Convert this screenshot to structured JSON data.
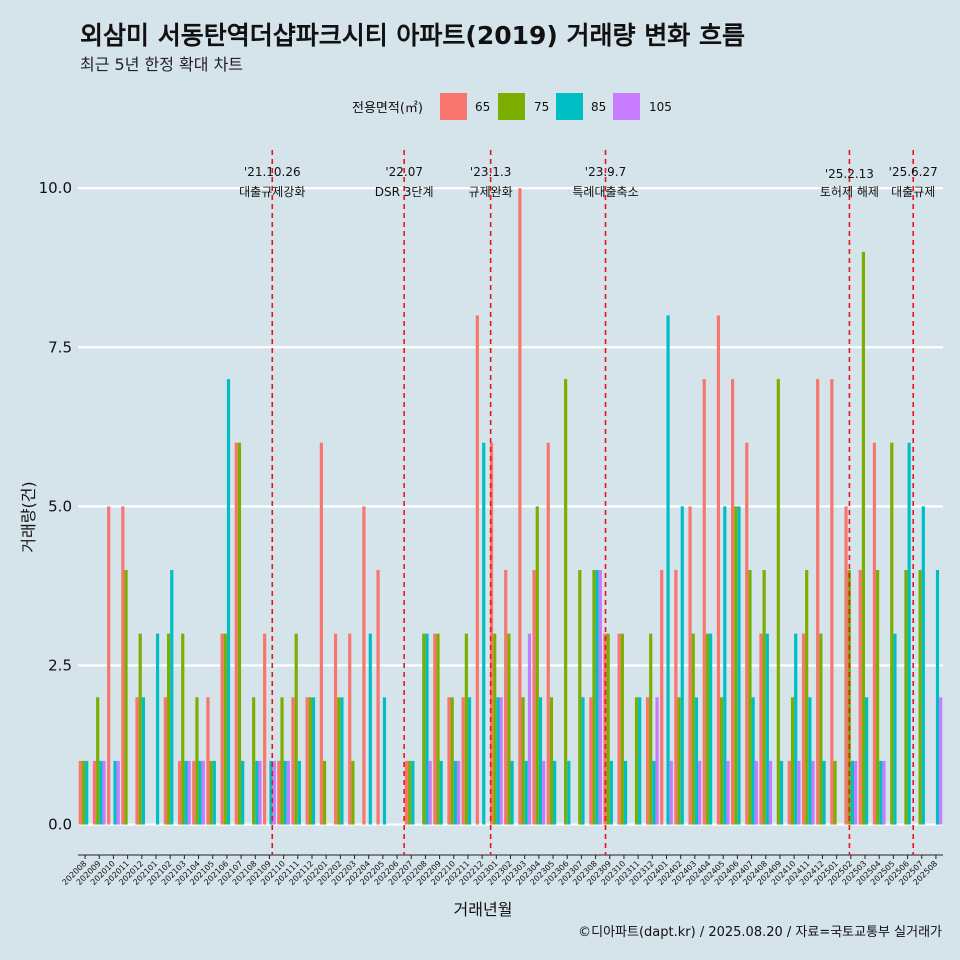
{
  "title": "외삼미 서동탄역더샵파크시티 아파트(2019) 거래량 변화 흐름",
  "subtitle": "최근 5년 한정 확대 차트",
  "caption": "©디아파트(dapt.kr) / 2025.08.20 / 자료=국토교통부 실거래가",
  "colors": {
    "background": "#d5e3ea",
    "grid": "#ffffff",
    "vline": "#e8151b",
    "s65": "#f8766d",
    "s75": "#7cae00",
    "s85": "#00bfc4",
    "s105": "#c77cff"
  },
  "chart_data": {
    "type": "bar",
    "xlabel": "거래년월",
    "ylabel": "거래량(건)",
    "ylim": [
      -0.4,
      10.6
    ],
    "yticks": [
      "0.0",
      "2.5",
      "5.0",
      "7.5",
      "10.0"
    ],
    "legend_title": "전용면적(㎡)",
    "legend_position": "top",
    "categories": [
      "202008",
      "202009",
      "202010",
      "202011",
      "202012",
      "202101",
      "202102",
      "202103",
      "202104",
      "202105",
      "202106",
      "202107",
      "202108",
      "202109",
      "202110",
      "202111",
      "202112",
      "202201",
      "202202",
      "202203",
      "202204",
      "202205",
      "202206",
      "202207",
      "202208",
      "202209",
      "202210",
      "202211",
      "202212",
      "202301",
      "202302",
      "202303",
      "202304",
      "202305",
      "202306",
      "202307",
      "202308",
      "202309",
      "202310",
      "202311",
      "202312",
      "202401",
      "202402",
      "202403",
      "202404",
      "202405",
      "202406",
      "202407",
      "202408",
      "202409",
      "202410",
      "202411",
      "202412",
      "202501",
      "202502",
      "202503",
      "202504",
      "202505",
      "202506",
      "202507",
      "202508"
    ],
    "series": [
      {
        "name": "65",
        "values": [
          1,
          1,
          5,
          5,
          2,
          0,
          2,
          1,
          1,
          2,
          3,
          6,
          0,
          3,
          1,
          2,
          2,
          6,
          3,
          3,
          5,
          4,
          0,
          1,
          0,
          3,
          2,
          2,
          8,
          6,
          4,
          10,
          4,
          6,
          0,
          0,
          2,
          3,
          3,
          0,
          2,
          4,
          4,
          5,
          7,
          8,
          7,
          6,
          3,
          0,
          1,
          3,
          7,
          7,
          5,
          4,
          6,
          0,
          0,
          0,
          0
        ]
      },
      {
        "name": "75",
        "values": [
          1,
          2,
          0,
          4,
          3,
          0,
          3,
          3,
          2,
          1,
          3,
          6,
          2,
          0,
          2,
          3,
          2,
          1,
          2,
          1,
          0,
          0,
          0,
          1,
          3,
          3,
          2,
          3,
          0,
          3,
          3,
          2,
          5,
          2,
          7,
          4,
          4,
          3,
          3,
          2,
          3,
          0,
          2,
          3,
          3,
          2,
          5,
          4,
          4,
          7,
          2,
          4,
          3,
          1,
          4,
          9,
          4,
          6,
          4,
          4,
          0
        ]
      },
      {
        "name": "85",
        "values": [
          1,
          1,
          1,
          0,
          2,
          3,
          4,
          1,
          1,
          1,
          7,
          1,
          1,
          1,
          1,
          1,
          2,
          0,
          2,
          0,
          3,
          2,
          0,
          1,
          3,
          1,
          1,
          2,
          6,
          2,
          1,
          1,
          2,
          1,
          1,
          2,
          4,
          1,
          1,
          2,
          1,
          8,
          5,
          2,
          3,
          5,
          5,
          2,
          3,
          1,
          3,
          2,
          1,
          0,
          1,
          2,
          1,
          3,
          6,
          5,
          4
        ]
      },
      {
        "name": "105",
        "values": [
          0,
          1,
          1,
          0,
          0,
          0,
          0,
          1,
          1,
          0,
          0,
          0,
          1,
          1,
          1,
          0,
          0,
          0,
          0,
          0,
          0,
          0,
          0,
          0,
          1,
          0,
          1,
          0,
          0,
          2,
          0,
          3,
          1,
          0,
          0,
          0,
          4,
          0,
          0,
          0,
          2,
          1,
          0,
          1,
          0,
          1,
          0,
          1,
          1,
          0,
          1,
          1,
          0,
          0,
          1,
          0,
          1,
          0,
          0,
          0,
          2
        ]
      }
    ],
    "events": [
      {
        "date": "'21.10.26",
        "label": "대출규제강화",
        "after_index": 13.7
      },
      {
        "date": "'22.07",
        "label": "DSR 3단계",
        "after_index": 23.0
      },
      {
        "date": "'23.1.3",
        "label": "규제완화",
        "after_index": 29.1
      },
      {
        "date": "'23.9.7",
        "label": "특례대출축소",
        "after_index": 37.2
      },
      {
        "date": "'25.2.13",
        "label": "토허제 해제",
        "after_index": 54.4
      },
      {
        "date": "'25.6.27",
        "label": "대출규제",
        "after_index": 58.9
      }
    ]
  }
}
